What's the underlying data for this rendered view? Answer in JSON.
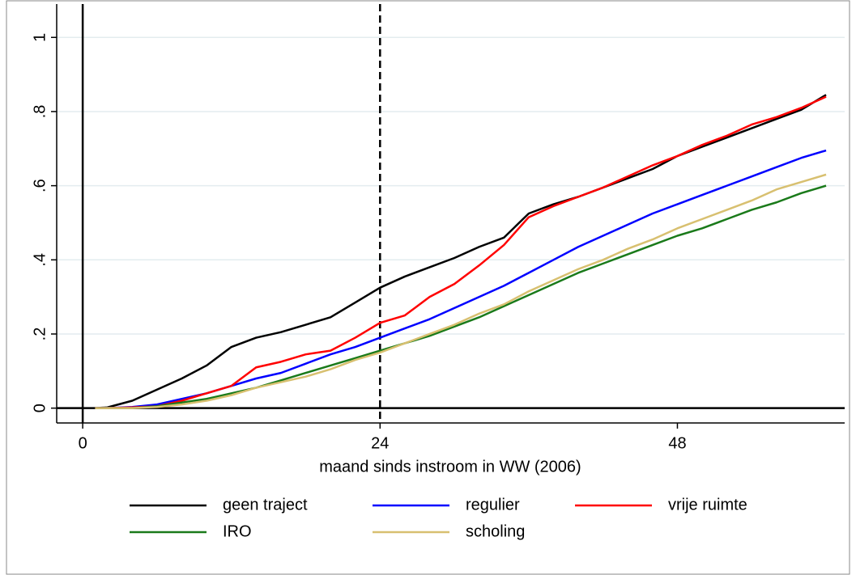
{
  "chart_data": {
    "type": "line",
    "xlabel": "maand sinds instroom in WW (2006)",
    "x": [
      1,
      2,
      4,
      6,
      8,
      10,
      12,
      14,
      16,
      18,
      20,
      22,
      24,
      26,
      28,
      30,
      32,
      34,
      36,
      38,
      40,
      42,
      44,
      46,
      48,
      50,
      52,
      54,
      56,
      58,
      60
    ],
    "series": [
      {
        "name": "geen traject",
        "color": "#000000",
        "values": [
          0,
          0.002,
          0.02,
          0.05,
          0.08,
          0.115,
          0.165,
          0.19,
          0.205,
          0.225,
          0.245,
          0.285,
          0.325,
          0.355,
          0.38,
          0.405,
          0.435,
          0.46,
          0.525,
          0.55,
          0.57,
          0.595,
          0.62,
          0.645,
          0.68,
          0.705,
          0.73,
          0.755,
          0.78,
          0.805,
          0.845
        ]
      },
      {
        "name": "regulier",
        "color": "#0000ff",
        "values": [
          0,
          0,
          0.003,
          0.01,
          0.025,
          0.04,
          0.06,
          0.08,
          0.095,
          0.12,
          0.145,
          0.165,
          0.19,
          0.215,
          0.24,
          0.27,
          0.3,
          0.33,
          0.365,
          0.4,
          0.435,
          0.465,
          0.495,
          0.525,
          0.55,
          0.575,
          0.6,
          0.625,
          0.65,
          0.675,
          0.695
        ]
      },
      {
        "name": "vrije ruimte",
        "color": "#ff0000",
        "values": [
          0,
          0,
          0.002,
          0.005,
          0.02,
          0.04,
          0.06,
          0.11,
          0.125,
          0.145,
          0.155,
          0.19,
          0.23,
          0.25,
          0.3,
          0.335,
          0.385,
          0.44,
          0.515,
          0.545,
          0.57,
          0.595,
          0.625,
          0.655,
          0.68,
          0.71,
          0.735,
          0.765,
          0.785,
          0.81,
          0.84
        ]
      },
      {
        "name": "IRO",
        "color": "#1a7a1a",
        "values": [
          0,
          0,
          0,
          0.005,
          0.015,
          0.025,
          0.04,
          0.055,
          0.075,
          0.095,
          0.115,
          0.135,
          0.155,
          0.175,
          0.195,
          0.22,
          0.245,
          0.275,
          0.305,
          0.335,
          0.365,
          0.39,
          0.415,
          0.44,
          0.465,
          0.485,
          0.51,
          0.535,
          0.555,
          0.58,
          0.6
        ]
      },
      {
        "name": "scholing",
        "color": "#d8c070",
        "values": [
          0,
          0,
          0,
          0.003,
          0.01,
          0.02,
          0.035,
          0.055,
          0.07,
          0.085,
          0.105,
          0.13,
          0.15,
          0.175,
          0.2,
          0.225,
          0.255,
          0.28,
          0.315,
          0.345,
          0.375,
          0.4,
          0.43,
          0.455,
          0.485,
          0.51,
          0.535,
          0.56,
          0.59,
          0.61,
          0.63
        ]
      }
    ],
    "xlim": [
      -2.1,
      61.5
    ],
    "ylim": [
      -0.04,
      1.09
    ],
    "xticks": [
      0,
      24,
      48
    ],
    "yticks": [
      0,
      {
        "value": 0.2,
        "label": ".2"
      },
      {
        "value": 0.4,
        "label": ".4"
      },
      {
        "value": 0.6,
        "label": ".6"
      },
      {
        "value": 0.8,
        "label": ".8"
      },
      1
    ],
    "grid": true,
    "xlines": [
      {
        "value": 0,
        "style": "solid"
      },
      {
        "value": 24,
        "style": "dashed"
      }
    ],
    "ylines": [
      0
    ],
    "legend": "bottom"
  }
}
